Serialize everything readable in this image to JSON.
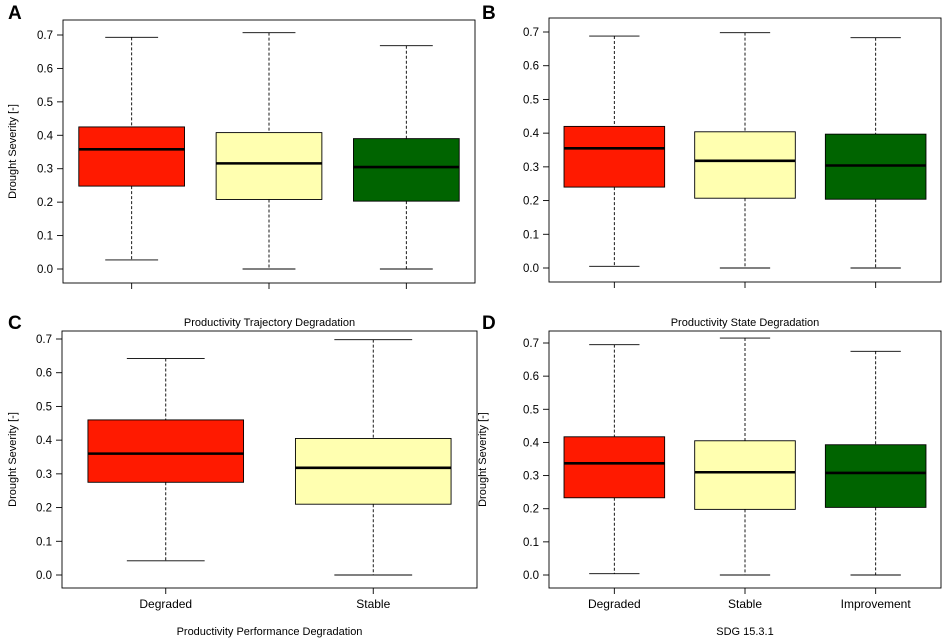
{
  "figure": {
    "colors": {
      "degraded": "#ff1a00",
      "stable": "#ffffb0",
      "improvement": "#006400",
      "line": "#000000"
    }
  },
  "chart_data": [
    {
      "panel": "A",
      "type": "box",
      "title": "",
      "xlabel": "",
      "ylabel": "Drought Severity [-]",
      "ylim": [
        0,
        0.7
      ],
      "yticks": [
        "0.0",
        "0.1",
        "0.2",
        "0.3",
        "0.4",
        "0.5",
        "0.6",
        "0.7"
      ],
      "categories": [
        "",
        "",
        ""
      ],
      "boxes": [
        {
          "name": "Degraded",
          "color": "#ff1a00",
          "min": 0.027,
          "q1": 0.248,
          "median": 0.358,
          "q3": 0.425,
          "max": 0.693
        },
        {
          "name": "Stable",
          "color": "#ffffb0",
          "min": 0.0,
          "q1": 0.208,
          "median": 0.316,
          "q3": 0.408,
          "max": 0.707
        },
        {
          "name": "Improvement",
          "color": "#006400",
          "min": 0.0,
          "q1": 0.203,
          "median": 0.305,
          "q3": 0.39,
          "max": 0.668
        }
      ]
    },
    {
      "panel": "B",
      "type": "box",
      "title": "",
      "xlabel": "",
      "ylabel": "",
      "ylim": [
        0,
        0.7
      ],
      "yticks": [
        "0.0",
        "0.1",
        "0.2",
        "0.3",
        "0.4",
        "0.5",
        "0.6",
        "0.7"
      ],
      "categories": [
        "",
        "",
        ""
      ],
      "boxes": [
        {
          "name": "Degraded",
          "color": "#ff1a00",
          "min": 0.005,
          "q1": 0.24,
          "median": 0.355,
          "q3": 0.42,
          "max": 0.688
        },
        {
          "name": "Stable",
          "color": "#ffffb0",
          "min": 0.0,
          "q1": 0.207,
          "median": 0.318,
          "q3": 0.404,
          "max": 0.698
        },
        {
          "name": "Improvement",
          "color": "#006400",
          "min": 0.0,
          "q1": 0.204,
          "median": 0.304,
          "q3": 0.397,
          "max": 0.683
        }
      ]
    },
    {
      "panel": "C",
      "type": "box",
      "title": "Productivity Trajectory Degradation",
      "xlabel": "Productivity Performance Degradation",
      "ylabel": "Drought Severity [-]",
      "ylim": [
        0,
        0.7
      ],
      "yticks": [
        "0.0",
        "0.1",
        "0.2",
        "0.3",
        "0.4",
        "0.5",
        "0.6",
        "0.7"
      ],
      "categories": [
        "Degraded",
        "Stable"
      ],
      "boxes": [
        {
          "name": "Degraded",
          "color": "#ff1a00",
          "min": 0.042,
          "q1": 0.275,
          "median": 0.36,
          "q3": 0.46,
          "max": 0.642
        },
        {
          "name": "Stable",
          "color": "#ffffb0",
          "min": 0.0,
          "q1": 0.21,
          "median": 0.318,
          "q3": 0.405,
          "max": 0.698
        }
      ]
    },
    {
      "panel": "D",
      "type": "box",
      "title": "Productivity State Degradation",
      "xlabel": "SDG 15.3.1",
      "ylabel": "Drought Severity [-]",
      "ylim": [
        0,
        0.7
      ],
      "yticks": [
        "0.0",
        "0.1",
        "0.2",
        "0.3",
        "0.4",
        "0.5",
        "0.6",
        "0.7"
      ],
      "categories": [
        "Degraded",
        "Stable",
        "Improvement"
      ],
      "boxes": [
        {
          "name": "Degraded",
          "color": "#ff1a00",
          "min": 0.004,
          "q1": 0.233,
          "median": 0.337,
          "q3": 0.417,
          "max": 0.695
        },
        {
          "name": "Stable",
          "color": "#ffffb0",
          "min": 0.0,
          "q1": 0.198,
          "median": 0.31,
          "q3": 0.405,
          "max": 0.715
        },
        {
          "name": "Improvement",
          "color": "#006400",
          "min": 0.0,
          "q1": 0.204,
          "median": 0.308,
          "q3": 0.393,
          "max": 0.675
        }
      ]
    }
  ]
}
